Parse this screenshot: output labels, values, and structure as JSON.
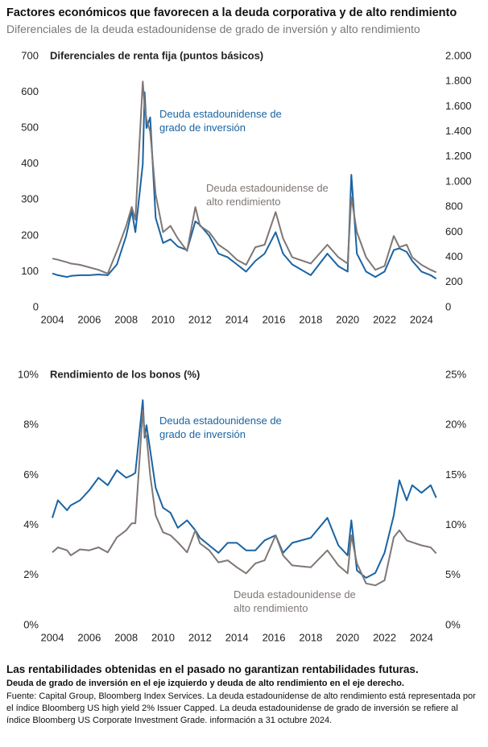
{
  "title": "Factores económicos que favorecen a la deuda corporativa y de alto rendimiento",
  "subtitle": "Diferenciales de la deuda estadounidense de grado de inversión y alto rendimiento",
  "chart_data": [
    {
      "type": "line",
      "ylabel": "Diferenciales de renta fija (puntos básicos)",
      "x": [
        2004,
        2004.3,
        2004.8,
        2005,
        2005.5,
        2006,
        2006.5,
        2007,
        2007.5,
        2008,
        2008.3,
        2008.5,
        2008.9,
        2009,
        2009.1,
        2009.3,
        2009.6,
        2010,
        2010.4,
        2010.8,
        2011.3,
        2011.75,
        2012,
        2012.5,
        2013,
        2013.5,
        2014,
        2014.5,
        2015,
        2015.5,
        2016.1,
        2016.5,
        2017,
        2018,
        2018.9,
        2019.5,
        2020,
        2020.2,
        2020.5,
        2021,
        2021.5,
        2022,
        2022.5,
        2022.8,
        2023.2,
        2023.5,
        2024,
        2024.5,
        2024.8
      ],
      "xlim": [
        2004,
        2024.9
      ],
      "xticks": [
        2004,
        2006,
        2008,
        2010,
        2012,
        2014,
        2016,
        2018,
        2020,
        2022,
        2024
      ],
      "ylim": [
        0,
        700
      ],
      "yticks": [
        0,
        100,
        200,
        300,
        400,
        500,
        600,
        700
      ],
      "y2lim": [
        0,
        2000
      ],
      "y2ticks": [
        0,
        200,
        400,
        600,
        800,
        {
          "value": 1000,
          "label": "1.000"
        },
        {
          "value": 1200,
          "label": "1.200"
        },
        {
          "value": 1400,
          "label": "1.400"
        },
        {
          "value": 1600,
          "label": "1.600"
        },
        {
          "value": 1800,
          "label": "1.800"
        },
        {
          "value": 2000,
          "label": "2.000"
        }
      ],
      "series": [
        {
          "name": "Deuda estadounidense de grado de inversión",
          "color": "#1a64a3",
          "values": [
            95,
            90,
            85,
            88,
            90,
            90,
            92,
            90,
            120,
            200,
            270,
            210,
            400,
            600,
            500,
            530,
            250,
            180,
            190,
            170,
            160,
            240,
            230,
            200,
            150,
            140,
            120,
            100,
            130,
            150,
            210,
            150,
            120,
            90,
            150,
            115,
            100,
            370,
            150,
            100,
            85,
            100,
            160,
            165,
            155,
            130,
            100,
            90,
            80
          ]
        },
        {
          "name": "Deuda estadounidense de alto rendimiento",
          "color": "#7f7774",
          "axis": "y2",
          "values": [
            390,
            380,
            360,
            350,
            340,
            320,
            300,
            270,
            450,
            650,
            800,
            700,
            1800,
            1600,
            1500,
            1400,
            900,
            600,
            650,
            550,
            450,
            800,
            650,
            600,
            500,
            450,
            380,
            340,
            480,
            500,
            760,
            550,
            400,
            350,
            500,
            400,
            350,
            880,
            600,
            400,
            300,
            330,
            570,
            480,
            500,
            400,
            340,
            300,
            280
          ]
        }
      ]
    },
    {
      "type": "line",
      "ylabel": "Rendimiento de los bonos (%)",
      "x": [
        2004,
        2004.3,
        2004.8,
        2005,
        2005.5,
        2006,
        2006.5,
        2007,
        2007.5,
        2008,
        2008.3,
        2008.5,
        2008.9,
        2009,
        2009.1,
        2009.3,
        2009.6,
        2010,
        2010.4,
        2010.8,
        2011.3,
        2011.75,
        2012,
        2012.5,
        2013,
        2013.5,
        2014,
        2014.5,
        2015,
        2015.5,
        2016.1,
        2016.5,
        2017,
        2018,
        2018.9,
        2019.5,
        2020,
        2020.2,
        2020.5,
        2021,
        2021.5,
        2022,
        2022.5,
        2022.8,
        2023.2,
        2023.5,
        2024,
        2024.5,
        2024.8
      ],
      "xlim": [
        2004,
        2024.9
      ],
      "xticks": [
        2004,
        2006,
        2008,
        2010,
        2012,
        2014,
        2016,
        2018,
        2020,
        2022,
        2024
      ],
      "ylim": [
        0,
        10
      ],
      "yticks": [
        {
          "value": 0,
          "label": "0%"
        },
        {
          "value": 2,
          "label": "2%"
        },
        {
          "value": 4,
          "label": "4%"
        },
        {
          "value": 6,
          "label": "6%"
        },
        {
          "value": 8,
          "label": "8%"
        },
        {
          "value": 10,
          "label": "10%"
        }
      ],
      "y2lim": [
        0,
        25
      ],
      "y2ticks": [
        {
          "value": 0,
          "label": "0%"
        },
        {
          "value": 5,
          "label": "5%"
        },
        {
          "value": 10,
          "label": "10%"
        },
        {
          "value": 15,
          "label": "15%"
        },
        {
          "value": 20,
          "label": "20%"
        },
        {
          "value": 25,
          "label": "25%"
        }
      ],
      "series": [
        {
          "name": "Deuda estadounidense de grado de inversión",
          "color": "#1a64a3",
          "values": [
            4.3,
            5.0,
            4.6,
            4.8,
            5.0,
            5.4,
            5.9,
            5.6,
            6.2,
            5.9,
            6.0,
            6.1,
            9.0,
            7.5,
            8.0,
            7.0,
            5.5,
            4.7,
            4.5,
            3.9,
            4.2,
            3.8,
            3.5,
            3.2,
            2.9,
            3.3,
            3.3,
            3.0,
            3.0,
            3.4,
            3.6,
            2.9,
            3.3,
            3.5,
            4.3,
            3.2,
            2.8,
            4.2,
            2.2,
            1.9,
            2.1,
            2.9,
            4.4,
            5.8,
            5.0,
            5.6,
            5.3,
            5.6,
            5.1
          ]
        },
        {
          "name": "Deuda estadounidense de alto rendimiento",
          "color": "#7f7774",
          "axis": "y2",
          "values": [
            7.3,
            7.8,
            7.5,
            7.0,
            7.6,
            7.5,
            7.8,
            7.3,
            8.8,
            9.5,
            10.2,
            10.2,
            21.5,
            19,
            19,
            15,
            11,
            9.3,
            9.0,
            8.3,
            7.3,
            9.5,
            8.2,
            7.5,
            6.3,
            6.5,
            5.8,
            5.2,
            6.2,
            6.5,
            9.0,
            7.0,
            6.0,
            5.8,
            7.5,
            6.0,
            5.2,
            9.0,
            6.2,
            4.2,
            4.0,
            4.5,
            8.8,
            9.5,
            8.5,
            8.3,
            8.0,
            7.8,
            7.2
          ]
        }
      ]
    }
  ],
  "footer": {
    "disclaimer": "Las rentabilidades obtenidas en el pasado no garantizan rentabilidades futuras.",
    "note": "Deuda de grado de inversión en el eje izquierdo y deuda de alto rendimiento en el eje derecho.",
    "source": "Fuente: Capital Group, Bloomberg Index Services. La deuda estadounidense de alto rendimiento está representada por el índice Bloomberg US high yield 2% Issuer Capped. La deuda estadounidense de grado de inversión se refiere al índice Bloomberg US Corporate Investment Grade. información a 31 octubre 2024."
  }
}
